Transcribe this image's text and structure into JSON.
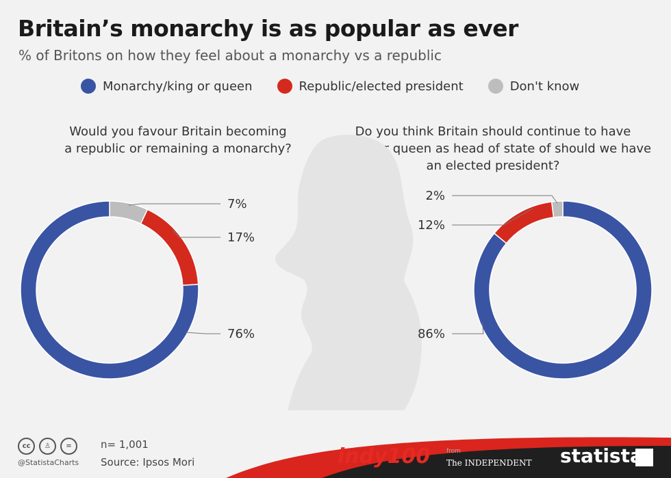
{
  "title": "Britain’s monarchy is as popular as ever",
  "subtitle": "% of Britons on how they feel about a monarchy vs a republic",
  "legend": [
    {
      "label": "Monarchy/king or queen",
      "color": "#3a54a4"
    },
    {
      "label": "Republic/elected president",
      "color": "#d42a1e"
    },
    {
      "label": "Don't know",
      "color": "#bdbdbd"
    }
  ],
  "chart_data": [
    {
      "type": "pie",
      "title": "Would you favour Britain becoming a republic or remaining a monarchy?",
      "title_lines": [
        "Would you favour Britain becoming",
        "a republic or remaining a monarchy?"
      ],
      "slices": [
        {
          "label": "Monarchy/king or queen",
          "value": 76,
          "text": "76%",
          "color": "#3a54a4"
        },
        {
          "label": "Republic/elected president",
          "value": 17,
          "text": "17%",
          "color": "#d42a1e"
        },
        {
          "label": "Don't know",
          "value": 7,
          "text": "7%",
          "color": "#bdbdbd"
        }
      ]
    },
    {
      "type": "pie",
      "title": "Do you think Britain should continue to have a king or queen as head of state of should we have an elected president?",
      "title_lines": [
        "Do you think Britain should continue to have",
        "a king or queen as head of state of should we have",
        "an elected president?"
      ],
      "slices": [
        {
          "label": "Monarchy/king or queen",
          "value": 86,
          "text": "86%",
          "color": "#3a54a4"
        },
        {
          "label": "Republic/elected president",
          "value": 12,
          "text": "12%",
          "color": "#d42a1e"
        },
        {
          "label": "Don't know",
          "value": 2,
          "text": "2%",
          "color": "#bdbdbd"
        }
      ]
    }
  ],
  "footer": {
    "sample": "n= 1,001",
    "source": "Source: Ipsos Mori",
    "handle": "@StatistaCharts",
    "cc_icons": [
      "cc",
      "by",
      "nd"
    ],
    "brand_indy": "indy100",
    "brand_from": "from",
    "brand_independent": "The INDEPENDENT",
    "brand_statista": "statista"
  }
}
